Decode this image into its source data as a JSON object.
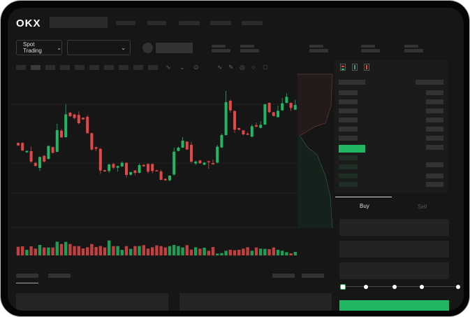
{
  "header": {
    "logo": "OKX"
  },
  "controls": {
    "spot_trading_label": "Spot Trading",
    "pair_dropdown_value": ""
  },
  "order_form": {
    "tabs": [
      {
        "label": "Buy",
        "active": true
      },
      {
        "label": "Sell",
        "active": false
      }
    ],
    "slider_percent": 0
  },
  "colors": {
    "up": "#22b663",
    "down": "#e04848",
    "background": "#161616"
  },
  "icons": [
    "chevron-down-icon",
    "order-book-both-icon",
    "order-book-buy-icon",
    "order-book-sell-icon"
  ],
  "chart_data": {
    "type": "candlestick",
    "ohlc": [
      [
        200,
        190,
        203,
        187
      ],
      [
        200,
        168,
        203,
        165
      ],
      [
        160,
        166,
        168,
        158
      ],
      [
        165,
        120,
        185,
        115
      ],
      [
        115,
        102,
        118,
        98
      ],
      [
        93,
        140,
        142,
        80
      ],
      [
        145,
        120,
        148,
        117
      ],
      [
        132,
        187,
        190,
        129
      ],
      [
        182,
        158,
        185,
        155
      ],
      [
        162,
        255,
        282,
        160
      ],
      [
        253,
        224,
        260,
        222
      ],
      [
        225,
        323,
        365,
        223
      ],
      [
        330,
        315,
        333,
        312
      ],
      [
        322,
        307,
        325,
        302
      ],
      [
        320,
        285,
        335,
        280
      ],
      [
        308,
        301,
        310,
        299
      ],
      [
        312,
        242,
        320,
        240
      ],
      [
        242,
        172,
        245,
        168
      ],
      [
        182,
        175,
        185,
        165
      ],
      [
        175,
        82,
        178,
        67
      ],
      [
        83,
        78,
        86,
        76
      ],
      [
        80,
        108,
        112,
        72
      ],
      [
        110,
        94,
        115,
        88
      ],
      [
        94,
        101,
        103,
        78
      ],
      [
        100,
        115,
        122,
        97
      ],
      [
        115,
        63,
        117,
        52
      ],
      [
        64,
        75,
        77,
        60
      ],
      [
        82,
        72,
        84,
        62
      ],
      [
        72,
        105,
        112,
        70
      ],
      [
        106,
        100,
        108,
        98
      ],
      [
        110,
        77,
        113,
        70
      ],
      [
        110,
        80,
        112,
        70
      ],
      [
        83,
        80,
        85,
        78
      ],
      [
        78,
        42,
        85,
        40
      ],
      [
        46,
        40,
        48,
        38
      ],
      [
        40,
        60,
        62,
        36
      ],
      [
        65,
        163,
        180,
        60
      ],
      [
        166,
        180,
        185,
        164
      ],
      [
        180,
        210,
        225,
        178
      ],
      [
        206,
        172,
        208,
        170
      ],
      [
        192,
        120,
        205,
        112
      ],
      [
        112,
        120,
        125,
        105
      ],
      [
        125,
        113,
        127,
        111
      ],
      [
        107,
        116,
        118,
        105
      ],
      [
        122,
        119,
        124,
        90
      ],
      [
        114,
        109,
        130,
        107
      ],
      [
        116,
        184,
        192,
        113
      ],
      [
        181,
        234,
        240,
        178
      ],
      [
        234,
        375,
        423,
        232
      ],
      [
        381,
        340,
        386,
        330
      ],
      [
        337,
        257,
        340,
        243
      ],
      [
        264,
        257,
        266,
        254
      ],
      [
        254,
        237,
        256,
        233
      ],
      [
        240,
        236,
        248,
        234
      ],
      [
        227,
        272,
        280,
        225
      ],
      [
        276,
        270,
        288,
        268
      ],
      [
        265,
        278,
        294,
        263
      ],
      [
        279,
        366,
        368,
        277
      ],
      [
        372,
        332,
        374,
        328
      ],
      [
        332,
        316,
        334,
        314
      ],
      [
        311,
        338,
        360,
        309
      ],
      [
        340,
        370,
        392,
        338
      ],
      [
        372,
        398,
        413,
        370
      ],
      [
        372,
        350,
        374,
        337
      ],
      [
        343,
        363,
        385,
        341
      ]
    ],
    "volume": [
      37,
      39,
      24,
      39,
      29,
      45,
      34,
      34,
      34,
      59,
      49,
      58,
      49,
      40,
      40,
      30,
      35,
      49,
      36,
      40,
      34,
      64,
      40,
      40,
      24,
      40,
      28,
      40,
      40,
      44,
      29,
      35,
      43,
      40,
      34,
      40,
      45,
      40,
      34,
      44,
      25,
      35,
      29,
      33,
      20,
      36,
      8,
      10,
      20,
      24,
      22,
      24,
      29,
      35,
      20,
      34,
      29,
      28,
      27,
      34,
      24,
      20,
      14,
      9,
      15
    ]
  }
}
